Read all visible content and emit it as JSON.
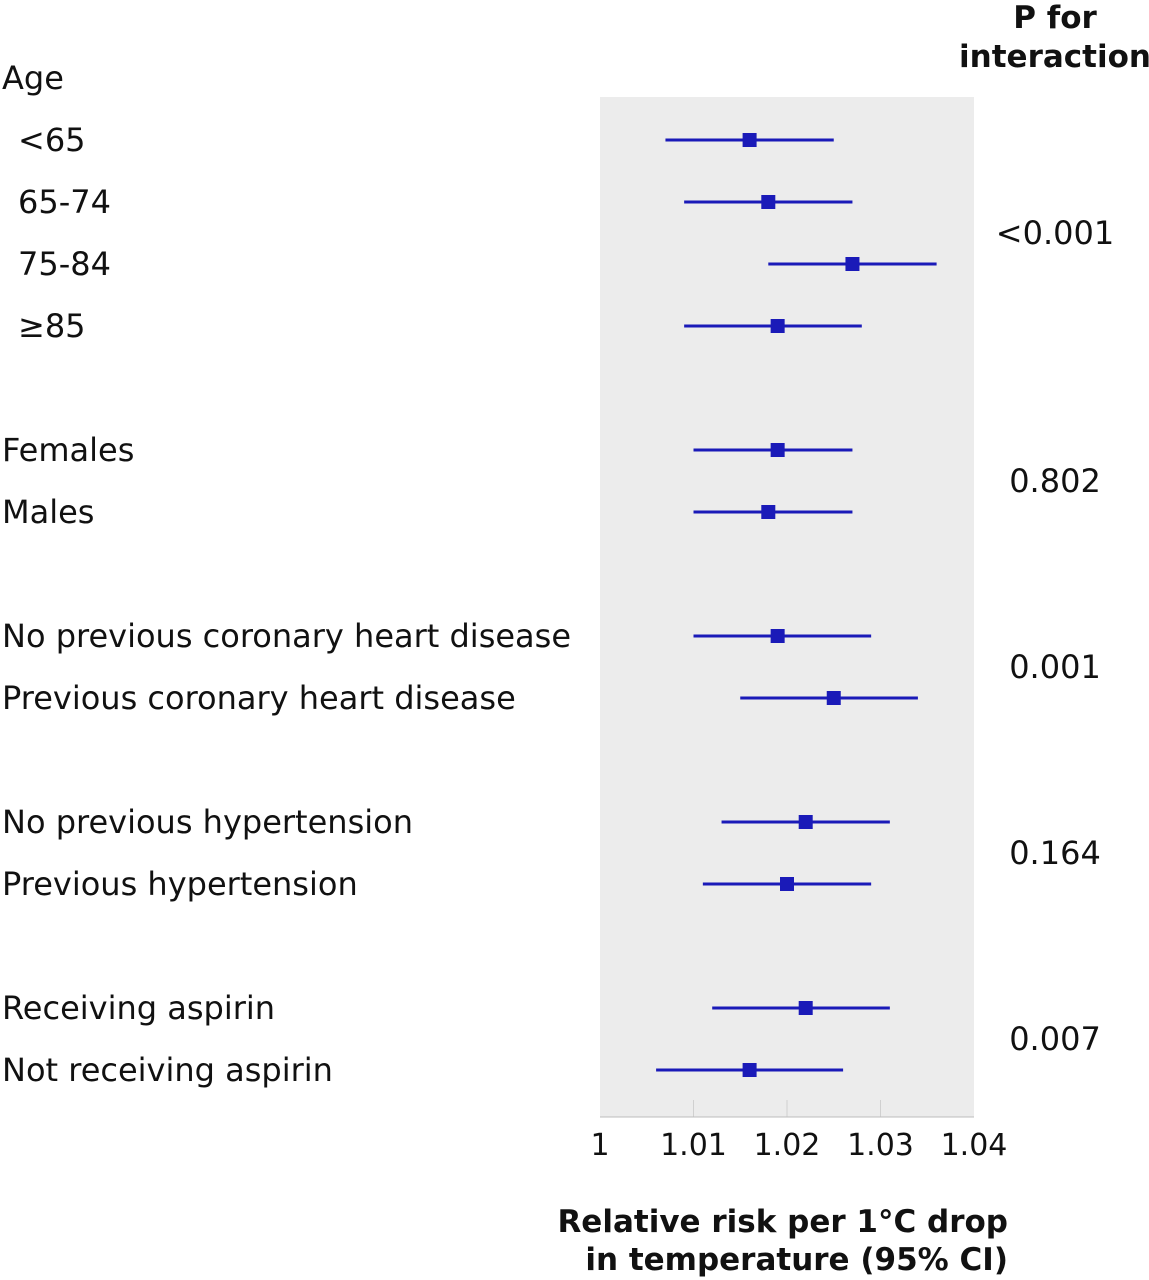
{
  "header": {
    "line1": "P for",
    "line2": "interaction"
  },
  "chart_data": {
    "type": "forest",
    "xlabel_line1": "Relative risk per 1°C drop",
    "xlabel_line2": "in temperature (95% CI)",
    "xlim": [
      1,
      1.04
    ],
    "x_ticks": [
      "1",
      "1.01",
      "1.02",
      "1.03",
      "1.04"
    ],
    "groups": [
      {
        "title": "Age",
        "p_value": "<0.001",
        "rows": [
          {
            "label": "<65",
            "est": 1.016,
            "lo": 1.007,
            "hi": 1.025
          },
          {
            "label": "65-74",
            "est": 1.018,
            "lo": 1.009,
            "hi": 1.027
          },
          {
            "label": "75-84",
            "est": 1.027,
            "lo": 1.018,
            "hi": 1.036
          },
          {
            "label": "≥85",
            "est": 1.019,
            "lo": 1.009,
            "hi": 1.028
          }
        ]
      },
      {
        "title": "",
        "p_value": "0.802",
        "rows": [
          {
            "label": "Females",
            "est": 1.019,
            "lo": 1.01,
            "hi": 1.027
          },
          {
            "label": "Males",
            "est": 1.018,
            "lo": 1.01,
            "hi": 1.027
          }
        ]
      },
      {
        "title": "",
        "p_value": "0.001",
        "rows": [
          {
            "label": "No previous coronary heart disease",
            "est": 1.019,
            "lo": 1.01,
            "hi": 1.029
          },
          {
            "label": "Previous coronary heart disease",
            "est": 1.025,
            "lo": 1.015,
            "hi": 1.034
          }
        ]
      },
      {
        "title": "",
        "p_value": "0.164",
        "rows": [
          {
            "label": "No previous hypertension",
            "est": 1.022,
            "lo": 1.013,
            "hi": 1.031
          },
          {
            "label": "Previous hypertension",
            "est": 1.02,
            "lo": 1.011,
            "hi": 1.029
          }
        ]
      },
      {
        "title": "",
        "p_value": "0.007",
        "rows": [
          {
            "label": "Receiving aspirin",
            "est": 1.022,
            "lo": 1.012,
            "hi": 1.031
          },
          {
            "label": "Not receiving aspirin",
            "est": 1.016,
            "lo": 1.006,
            "hi": 1.026
          }
        ]
      }
    ],
    "colors": {
      "marker": "#1a1ab8",
      "panel": "#ececec",
      "grid": "#d0d0d0"
    }
  }
}
